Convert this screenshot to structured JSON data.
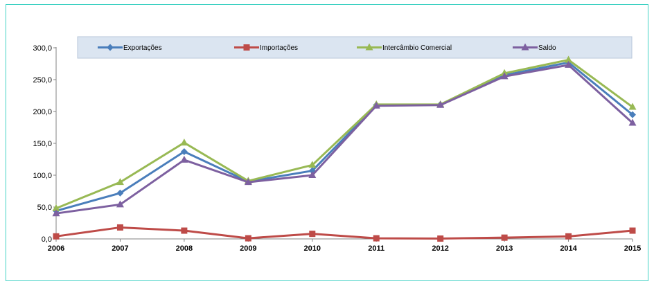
{
  "chart_data": {
    "type": "line",
    "categories": [
      "2006",
      "2007",
      "2008",
      "2009",
      "2010",
      "2011",
      "2012",
      "2013",
      "2014",
      "2015"
    ],
    "y_ticks": [
      "0,0",
      "50,0",
      "100,0",
      "150,0",
      "200,0",
      "250,0",
      "300,0"
    ],
    "ylim": [
      0,
      300
    ],
    "grid": false,
    "legend_position": "top",
    "series": [
      {
        "name": "Exportações",
        "color": "#4a7ebb",
        "marker": "diamond",
        "values": [
          44,
          72,
          137,
          90,
          107,
          210,
          211,
          257,
          277,
          195
        ]
      },
      {
        "name": "Importações",
        "color": "#be4b48",
        "marker": "square",
        "values": [
          4,
          18,
          13,
          1,
          8,
          1,
          0.5,
          2,
          4,
          13
        ]
      },
      {
        "name": "Intercâmbio Comercial",
        "color": "#98b954",
        "marker": "triangle",
        "values": [
          48,
          89,
          151,
          91,
          116,
          211,
          211,
          260,
          281,
          207
        ]
      },
      {
        "name": "Saldo",
        "color": "#7d60a0",
        "marker": "triangle",
        "values": [
          40,
          54,
          124,
          89,
          100,
          209,
          210,
          255,
          273,
          182
        ]
      }
    ]
  }
}
